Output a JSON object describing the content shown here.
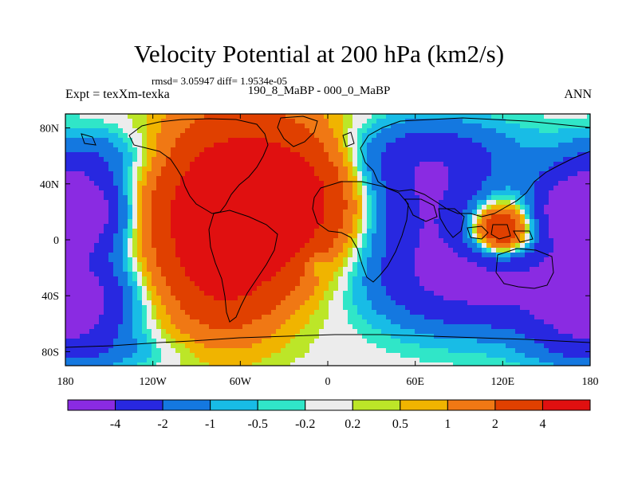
{
  "chart_data": {
    "type": "filled-contour-map",
    "title": "Velocity Potential at 200 hPa (km2/s)",
    "stats": "rmsd= 3.05947 diff= 1.9534e-05",
    "left_label": "Expt = texXm-texka",
    "center_label": "190_8_MaBP - 000_0_MaBP",
    "right_label": "ANN",
    "x_ticks": [
      {
        "value": 180,
        "label": "180"
      },
      {
        "value": -120,
        "label": "120W"
      },
      {
        "value": -60,
        "label": "60W"
      },
      {
        "value": 0,
        "label": "0"
      },
      {
        "value": 60,
        "label": "60E"
      },
      {
        "value": 120,
        "label": "120E"
      },
      {
        "value": 180,
        "label": "180"
      }
    ],
    "y_ticks": [
      {
        "value": 80,
        "label": "80N"
      },
      {
        "value": 40,
        "label": "40N"
      },
      {
        "value": 0,
        "label": "0"
      },
      {
        "value": -40,
        "label": "40S"
      },
      {
        "value": -80,
        "label": "80S"
      }
    ],
    "x_range": [
      -180,
      180
    ],
    "y_range": [
      -90,
      90
    ],
    "levels": [
      "-4",
      "-2",
      "-1",
      "-0.5",
      "-0.2",
      "0.2",
      "0.5",
      "1",
      "2",
      "4"
    ],
    "colors": [
      "#8a2be2",
      "#2828e0",
      "#1478e0",
      "#18bce6",
      "#30e6c8",
      "#ececec",
      "#bce628",
      "#f0b400",
      "#f07814",
      "#e04000",
      "#e01010"
    ],
    "field_features": [
      {
        "lon": -58,
        "lat": 30,
        "amp": 6.2,
        "sx": 42,
        "sy": 42
      },
      {
        "lon": -72,
        "lat": -15,
        "amp": 3.5,
        "sx": 28,
        "sy": 38
      },
      {
        "lon": -15,
        "lat": 30,
        "amp": 2.0,
        "sx": 25,
        "sy": 28
      },
      {
        "lon": 118,
        "lat": 5,
        "amp": 5.8,
        "sx": 18,
        "sy": 15
      },
      {
        "lon": 170,
        "lat": 20,
        "amp": -5.0,
        "sx": 22,
        "sy": 20
      },
      {
        "lon": -170,
        "lat": 20,
        "amp": -5.0,
        "sx": 22,
        "sy": 20
      },
      {
        "lon": 170,
        "lat": -45,
        "amp": -3.5,
        "sx": 25,
        "sy": 22
      },
      {
        "lon": -170,
        "lat": -45,
        "amp": -3.5,
        "sx": 25,
        "sy": 22
      },
      {
        "lon": 100,
        "lat": -28,
        "amp": -5.0,
        "sx": 45,
        "sy": 24
      },
      {
        "lon": 70,
        "lat": 25,
        "amp": -3.6,
        "sx": 28,
        "sy": 28
      },
      {
        "lon": 70,
        "lat": 60,
        "amp": -2.2,
        "sx": 45,
        "sy": 18
      },
      {
        "lon": -8,
        "lat": -18,
        "amp": -1.2,
        "sx": 6,
        "sy": 6
      },
      {
        "lon": -155,
        "lat": 60,
        "amp": -1.5,
        "sx": 30,
        "sy": 15
      },
      {
        "lon": -165,
        "lat": -80,
        "amp": -1.0,
        "sx": 40,
        "sy": 10
      }
    ]
  }
}
